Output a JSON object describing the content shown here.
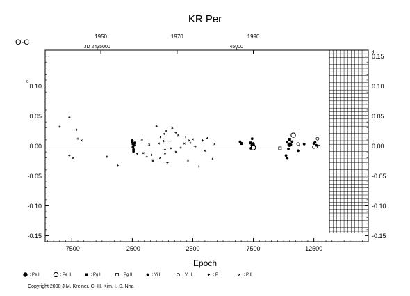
{
  "chart_data": {
    "type": "scatter",
    "title": "KR Per",
    "xlabel": "Epoch",
    "ylabel": "O-C",
    "y_unit_left": "d",
    "y_unit_right": "d",
    "xlim": [
      -9700,
      17000
    ],
    "ylim": [
      -0.16,
      0.16
    ],
    "x_ticks": [
      -7500,
      -2500,
      2500,
      7500,
      12500
    ],
    "x_tick_labels": [
      "-7500",
      "-2500",
      "2500",
      "7500",
      "12500"
    ],
    "y_ticks": [
      -0.15,
      -0.1,
      -0.05,
      0.0,
      0.05,
      0.1,
      0.15
    ],
    "y_tick_labels_left": [
      "-0.15",
      "-0.10",
      "-0.05",
      "0.00",
      "0.05",
      "0.10",
      ""
    ],
    "y_tick_labels_right": [
      "-0.15",
      "-0.10",
      "-0.05",
      "0.00",
      "0.05",
      "0.10",
      "0.15"
    ],
    "top_year_ticks": [
      {
        "label": "1950",
        "epoch": -5100
      },
      {
        "label": "1970",
        "epoch": 1200
      },
      {
        "label": "1990",
        "epoch": 7500
      }
    ],
    "top_jd_labels": [
      {
        "label": "JD 2435000",
        "epoch": -5400
      },
      {
        "label": "45000",
        "epoch": 6100
      }
    ],
    "future_region": {
      "x_start": 13800,
      "x_end": 17000,
      "pattern": "grid"
    },
    "grid": false,
    "legend_placement": "bottom",
    "legend": [
      {
        "symbol": "filled-circle-large",
        "label": ": Pe I"
      },
      {
        "symbol": "open-circle-large",
        "label": ": Pe II"
      },
      {
        "symbol": "filled-square",
        "label": ": Pg I"
      },
      {
        "symbol": "open-square",
        "label": ": Pg II"
      },
      {
        "symbol": "filled-circle",
        "label": ": Vi I"
      },
      {
        "symbol": "open-circle",
        "label": ": Vi II"
      },
      {
        "symbol": "plus",
        "label": ": P I"
      },
      {
        "symbol": "cross",
        "label": ": P II"
      }
    ],
    "series": [
      {
        "symbol": "plus",
        "points": [
          [
            -8500,
            0.032
          ],
          [
            -7700,
            0.048
          ],
          [
            -7100,
            0.027
          ],
          [
            -7700,
            -0.016
          ],
          [
            -7000,
            0.012
          ],
          [
            -4600,
            -0.018
          ],
          [
            -3700,
            -0.033
          ],
          [
            -2100,
            -0.013
          ],
          [
            -1300,
            -0.018
          ],
          [
            -500,
            0.033
          ],
          [
            -200,
            0.015
          ],
          [
            300,
            0.025
          ],
          [
            600,
            0.008
          ],
          [
            1100,
            0.022
          ],
          [
            1500,
            -0.003
          ],
          [
            1900,
            0.015
          ],
          [
            2100,
            -0.025
          ],
          [
            2700,
            -0.001
          ],
          [
            3000,
            -0.034
          ],
          [
            3300,
            0.009
          ],
          [
            3700,
            0.013
          ],
          [
            4100,
            -0.022
          ],
          [
            200,
            -0.006
          ],
          [
            -900,
            -0.015
          ],
          [
            100,
            0.008
          ],
          [
            400,
            -0.028
          ],
          [
            -1700,
            0.01
          ],
          [
            2300,
            0.005
          ]
        ]
      },
      {
        "symbol": "cross",
        "points": [
          [
            -7400,
            -0.02
          ],
          [
            -6700,
            0.009
          ],
          [
            -1600,
            -0.012
          ],
          [
            -200,
            -0.02
          ],
          [
            200,
            -0.014
          ],
          [
            700,
            -0.004
          ],
          [
            1100,
            -0.01
          ],
          [
            1800,
            0.004
          ],
          [
            2500,
            0.011
          ],
          [
            3500,
            -0.008
          ],
          [
            -1100,
            0.002
          ],
          [
            -300,
            0.004
          ],
          [
            800,
            0.03
          ],
          [
            1300,
            0.018
          ],
          [
            4300,
            0.003
          ],
          [
            -800,
            -0.025
          ],
          [
            100,
            0.02
          ],
          [
            2200,
            0.009
          ]
        ]
      },
      {
        "symbol": "filled-circle",
        "points": [
          [
            -2500,
            0.009
          ],
          [
            -2500,
            0.006
          ],
          [
            -2450,
            0.003
          ],
          [
            -2450,
            -0.002
          ],
          [
            -2400,
            -0.006
          ],
          [
            -2400,
            -0.009
          ],
          [
            -2350,
            0.001
          ],
          [
            -2300,
            0.005
          ],
          [
            7400,
            0.012
          ],
          [
            7500,
            0.004
          ],
          [
            7300,
            -0.004
          ],
          [
            7600,
            -0.002
          ],
          [
            10300,
            0.006
          ],
          [
            10400,
            -0.005
          ],
          [
            10200,
            -0.016
          ],
          [
            10600,
            0.002
          ],
          [
            10700,
            0.007
          ],
          [
            11200,
            -0.008
          ],
          [
            11700,
            0.003
          ],
          [
            12500,
            0.004
          ],
          [
            12700,
            0.001
          ],
          [
            12600,
            0.006
          ],
          [
            10300,
            -0.021
          ],
          [
            6400,
            0.007
          ]
        ]
      },
      {
        "symbol": "filled-circle-large",
        "points": [
          [
            7450,
            0.001
          ],
          [
            7500,
            -0.001
          ],
          [
            10500,
            0.002
          ]
        ]
      },
      {
        "symbol": "open-circle-large",
        "points": [
          [
            7500,
            -0.003
          ],
          [
            10800,
            0.018
          ]
        ]
      },
      {
        "symbol": "open-circle",
        "points": [
          [
            12800,
            0.012
          ],
          [
            11200,
            0.003
          ],
          [
            12500,
            -0.002
          ]
        ]
      },
      {
        "symbol": "filled-square",
        "points": [
          [
            7300,
            0.005
          ],
          [
            6500,
            0.004
          ],
          [
            10500,
            0.011
          ]
        ]
      },
      {
        "symbol": "open-square",
        "points": [
          [
            9700,
            -0.004
          ],
          [
            12900,
            -0.001
          ]
        ]
      }
    ]
  },
  "copyright": "Copyright 2000 J.M. Kreiner, C.-H. Kim, I.-S. Nha",
  "colors": {
    "ink": "#000000",
    "background": "#ffffff"
  }
}
